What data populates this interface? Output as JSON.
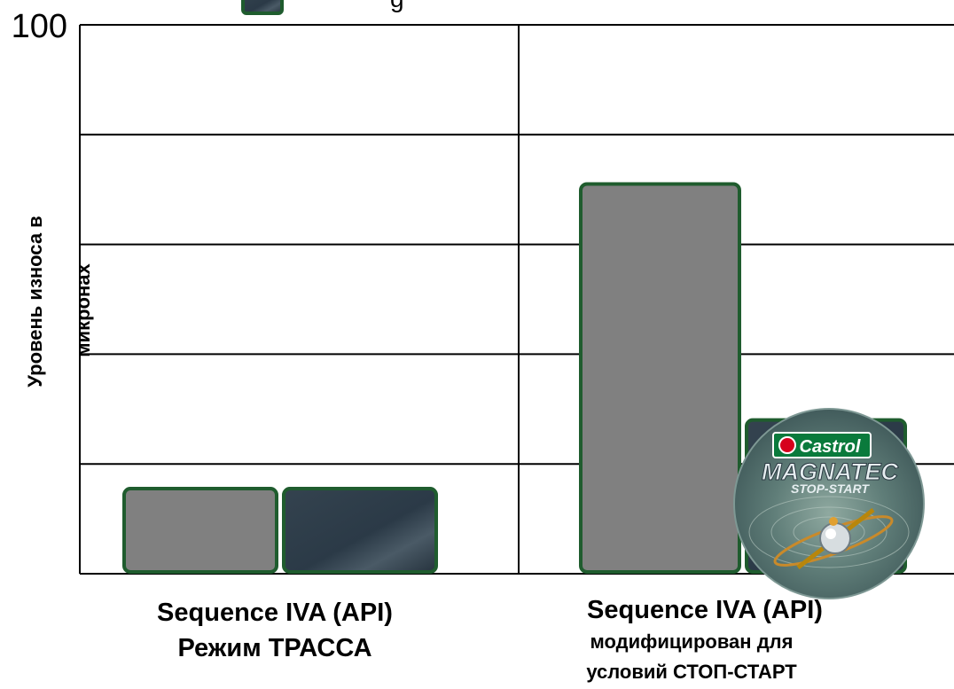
{
  "chart_data": {
    "type": "bar",
    "ylabel": "Уровень износа в микронах",
    "ylim": [
      0,
      100
    ],
    "yticks": [
      0,
      20,
      40,
      60,
      80,
      100
    ],
    "ytick_labels_shown": [
      "100"
    ],
    "grid": true,
    "legend_placement": "top (partially cut off)",
    "legend": [
      {
        "name": "",
        "color": "#2b3a47"
      }
    ],
    "categories": [
      {
        "line1": "Sequence IVA (API)",
        "line2": "Режим ТРАССА",
        "line3": ""
      },
      {
        "line1": "Sequence IVA (API)",
        "line2": "модифицирован для",
        "line3": "условий СТОП-СТАРТ"
      }
    ],
    "series": [
      {
        "name": "",
        "color": "#808080",
        "values": [
          15.5,
          71
        ]
      },
      {
        "name": "",
        "color": "#2b3a47",
        "values": [
          15.5,
          28
        ]
      }
    ],
    "bar_border_color": "#1f5c2e",
    "logo": {
      "brand": "Castrol",
      "product": "MAGNATEC",
      "tagline": "STOP-START"
    }
  }
}
